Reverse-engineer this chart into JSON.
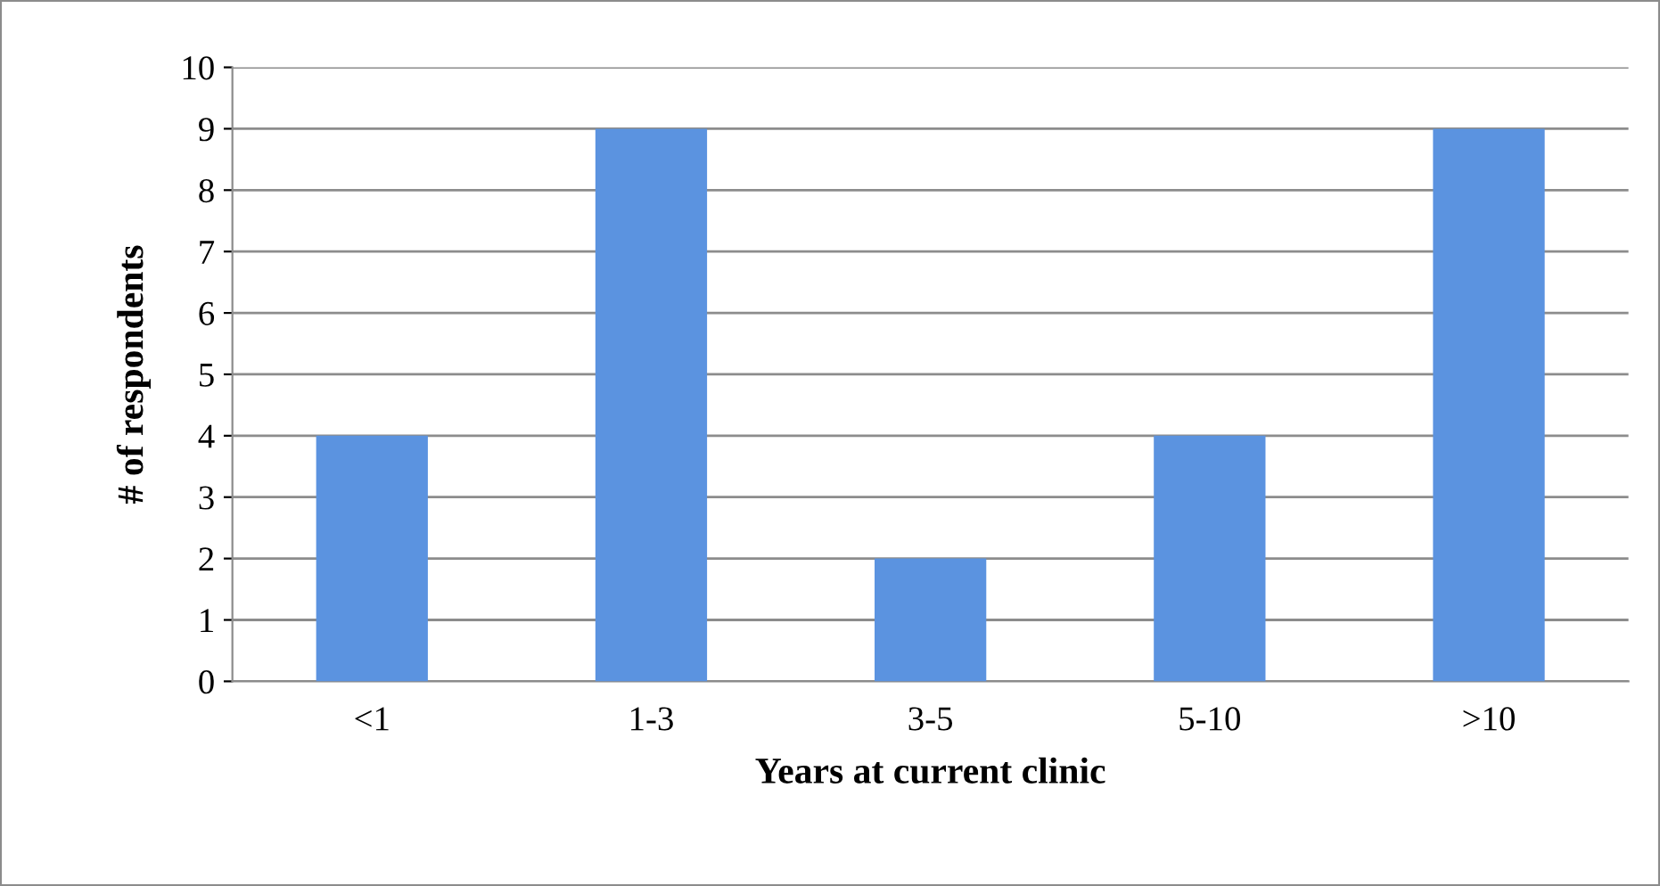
{
  "chart_data": {
    "type": "bar",
    "xlabel": "Years at current clinic",
    "ylabel": "# of respondents",
    "categories": [
      "<1",
      "1-3",
      "3-5",
      "5-10",
      ">10"
    ],
    "values": [
      4,
      9,
      2,
      4,
      9
    ],
    "color": "#5b93e0",
    "ylim": [
      0,
      10
    ],
    "yticks": [
      0,
      1,
      2,
      3,
      4,
      5,
      6,
      7,
      8,
      9,
      10
    ],
    "grid": "y",
    "legend": false
  }
}
